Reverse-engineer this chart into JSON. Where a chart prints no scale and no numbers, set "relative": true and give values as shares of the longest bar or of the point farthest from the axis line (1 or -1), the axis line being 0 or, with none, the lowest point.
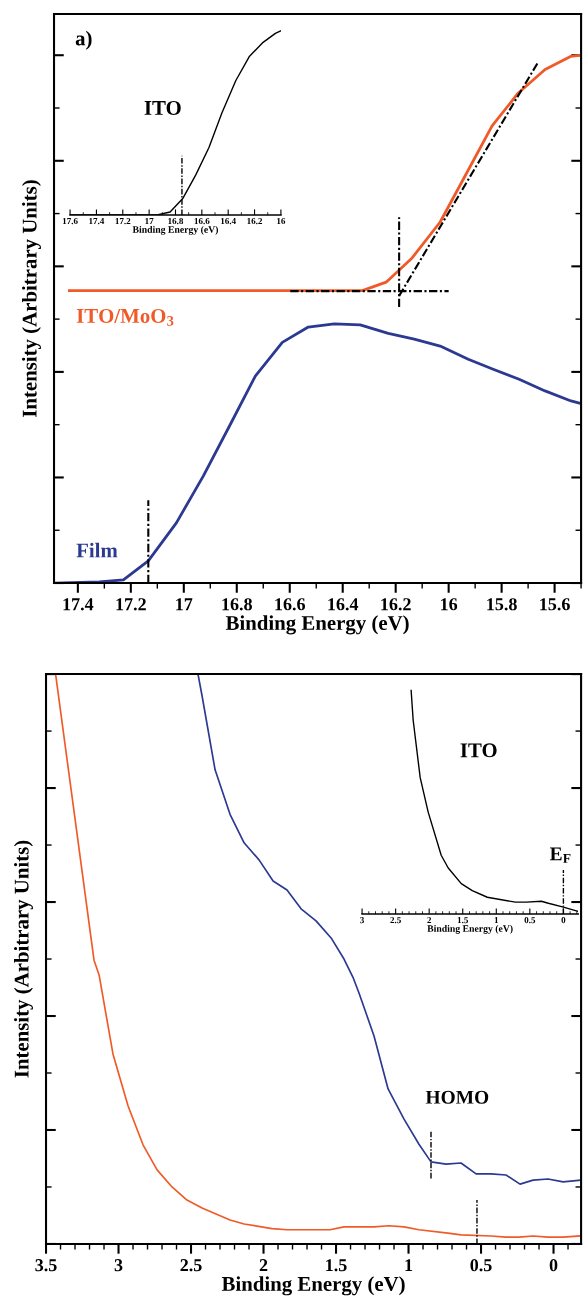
{
  "chart_data": [
    {
      "type": "line",
      "relative": true,
      "xlabel": "Binding Energy (eV)",
      "ylabel": "Intensity (Arbitrary Units)",
      "xlim": [
        17.49,
        15.5
      ],
      "xticks": [
        17.4,
        17.2,
        17,
        16.8,
        16.6,
        16.4,
        16.2,
        16,
        15.8,
        15.6
      ],
      "annotations": [
        "a)"
      ],
      "series": [
        {
          "name": "ITO/MoO$_{3}$",
          "color": "#f05a28",
          "x": [
            17.432,
            16.326,
            16.236,
            16.138,
            16.032,
            15.934,
            15.836,
            15.738,
            15.636,
            15.538,
            15.504
          ],
          "values": [
            0.554,
            0.554,
            0.57,
            0.616,
            0.684,
            0.775,
            0.866,
            0.928,
            0.973,
            0.998,
            1.0
          ]
        },
        {
          "name": "Film",
          "color": "#2b3990",
          "x": [
            17.49,
            17.319,
            17.228,
            17.134,
            17.028,
            16.926,
            16.828,
            16.73,
            16.628,
            16.53,
            16.432,
            16.334,
            16.228,
            16.13,
            16.032,
            15.926,
            15.832,
            15.734,
            15.636,
            15.538,
            15.508
          ],
          "values": [
            0,
            0.002,
            0.006,
            0.042,
            0.114,
            0.203,
            0.297,
            0.392,
            0.456,
            0.485,
            0.491,
            0.489,
            0.473,
            0.462,
            0.449,
            0.424,
            0.405,
            0.386,
            0.364,
            0.345,
            0.341
          ]
        },
        {
          "color": "#000000",
          "line_style": "dashed",
          "x": [
            16.598,
            16.0
          ],
          "values": [
            0.553,
            0.553
          ]
        },
        {
          "color": "#000000",
          "line_style": "dashed",
          "x": [
            16.187,
            15.662
          ],
          "values": [
            0.544,
            0.987
          ]
        },
        {
          "color": "#000000",
          "line_style": "dashed",
          "x": [
            16.187,
            16.187
          ],
          "values": [
            0.523,
            0.693
          ]
        },
        {
          "color": "#000000",
          "line_style": "dashed",
          "x": [
            17.134,
            17.134
          ],
          "values": [
            0,
            0.157
          ]
        }
      ]
    },
    {
      "type": "line",
      "relative": true,
      "xlabel": "Binding Energy (eV)",
      "xlim": [
        17.6,
        16
      ],
      "xticks": [
        17.6,
        17.4,
        17.2,
        17,
        16.8,
        16.6,
        16.4,
        16.2,
        16
      ],
      "series": [
        {
          "name": "ITO",
          "color": "#000000",
          "x": [
            17.597,
            16.939,
            16.841,
            16.743,
            16.645,
            16.546,
            16.448,
            16.342,
            16.238,
            16.135,
            16.042,
            16.0
          ],
          "values": [
            0,
            0,
            0.016,
            0.091,
            0.219,
            0.366,
            0.553,
            0.73,
            0.862,
            0.937,
            0.986,
            1.0
          ]
        },
        {
          "color": "#000000",
          "line_style": "dashed",
          "x": [
            16.751,
            16.751
          ],
          "values": [
            0,
            0.321
          ]
        }
      ]
    },
    {
      "type": "line",
      "relative": true,
      "xlabel": "Binding Energy (eV)",
      "ylabel": "Intensity (Arbitrary Units)",
      "xlim": [
        3.5,
        -0.19
      ],
      "xticks": [
        3.5,
        3,
        2.5,
        2,
        1.5,
        1,
        0.5,
        0
      ],
      "annotations": [
        {
          "text": "HOMO",
          "x": 0.845,
          "y": 0.2
        }
      ],
      "series": [
        {
          "color": "#f05a28",
          "x": [
            3.434,
            3.169,
            3.134,
            3.038,
            2.934,
            2.831,
            2.734,
            2.631,
            2.528,
            2.424,
            2.231,
            2.134,
            1.941,
            1.838,
            1.541,
            1.445,
            1.238,
            1.134,
            1.031,
            0.928,
            0.728,
            0.638,
            0.431,
            0.328,
            0.238,
            0.141,
            0.038,
            -0.066,
            -0.183
          ],
          "values": [
            1.0,
            0.498,
            0.472,
            0.333,
            0.242,
            0.174,
            0.13,
            0.1,
            0.077,
            0.063,
            0.042,
            0.035,
            0.027,
            0.025,
            0.025,
            0.03,
            0.03,
            0.032,
            0.03,
            0.025,
            0.019,
            0.016,
            0.014,
            0.012,
            0.012,
            0.014,
            0.012,
            0.012,
            0.014
          ]
        },
        {
          "color": "#2b3990",
          "x": [
            2.452,
            2.424,
            2.334,
            2.231,
            2.134,
            2.031,
            1.934,
            1.838,
            1.741,
            1.638,
            1.534,
            1.445,
            1.383,
            1.341,
            1.238,
            1.141,
            1.031,
            0.928,
            0.845,
            0.741,
            0.638,
            0.534,
            0.431,
            0.328,
            0.231,
            0.141,
            0.038,
            -0.066,
            -0.183
          ],
          "values": [
            1.0,
            0.962,
            0.832,
            0.754,
            0.704,
            0.674,
            0.637,
            0.621,
            0.588,
            0.567,
            0.537,
            0.5,
            0.468,
            0.44,
            0.365,
            0.272,
            0.219,
            0.175,
            0.144,
            0.14,
            0.142,
            0.123,
            0.123,
            0.121,
            0.105,
            0.112,
            0.114,
            0.109,
            0.112
          ]
        },
        {
          "color": "#000000",
          "line_style": "dashed",
          "x": [
            0.845,
            0.845
          ],
          "values": [
            0.115,
            0.2
          ]
        },
        {
          "color": "#000000",
          "line_style": "dashed",
          "x": [
            0.528,
            0.528
          ],
          "values": [
            0,
            0.077
          ]
        }
      ]
    },
    {
      "type": "line",
      "relative": true,
      "xlabel": "Binding Energy (eV)",
      "xlim": [
        3,
        -0.22
      ],
      "xticks": [
        3,
        2.5,
        2,
        1.5,
        1,
        0.5,
        0
      ],
      "annotations": [
        {
          "text": "E$_{F}$",
          "x": 0,
          "y": 0.197
        }
      ],
      "series": [
        {
          "name": "ITO",
          "color": "#000000",
          "x": [
            2.269,
            2.239,
            2.134,
            2.015,
            1.821,
            1.716,
            1.522,
            1.358,
            1.134,
            0.716,
            0.552,
            0.328,
            0.224,
            0.0,
            -0.209
          ],
          "values": [
            1.0,
            0.868,
            0.61,
            0.456,
            0.263,
            0.206,
            0.136,
            0.105,
            0.075,
            0.053,
            0.053,
            0.057,
            0.048,
            0.031,
            0.013
          ]
        },
        {
          "color": "#000000",
          "line_style": "dashed",
          "x": [
            0,
            0
          ],
          "values": [
            0,
            0.197
          ]
        }
      ]
    }
  ]
}
